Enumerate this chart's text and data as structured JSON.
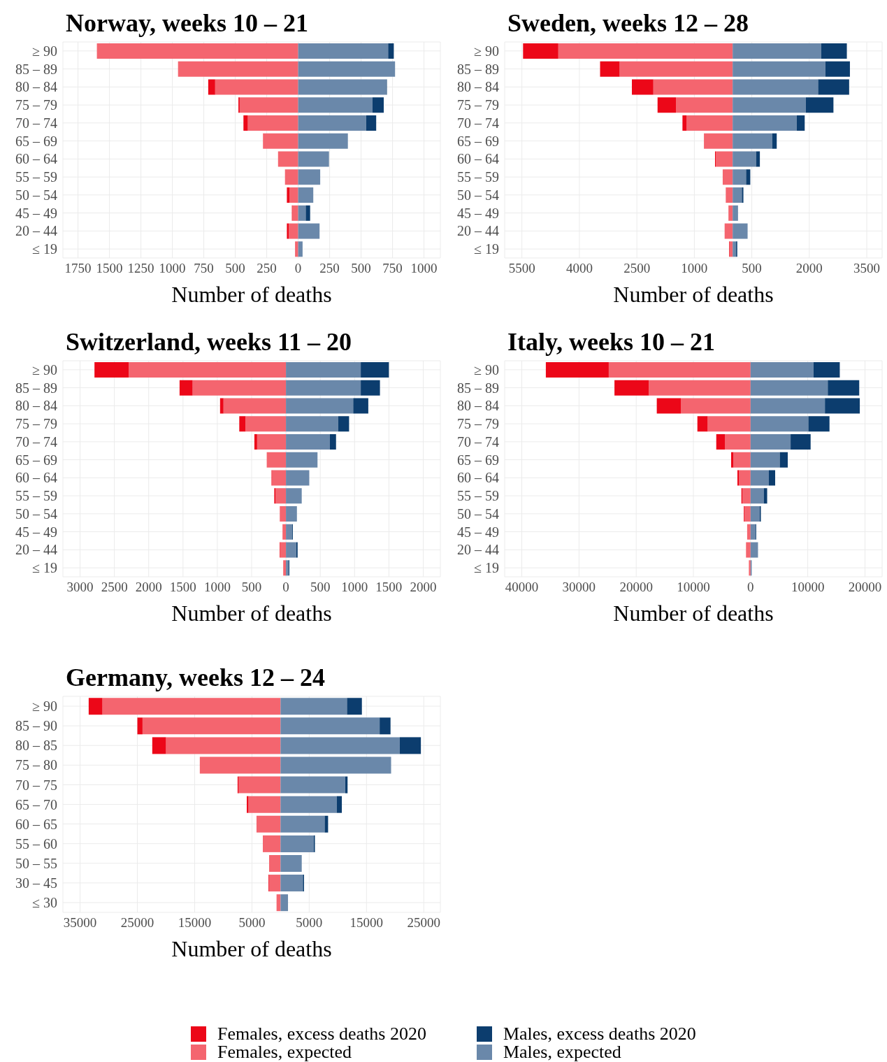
{
  "chart_data": [
    {
      "type": "bar",
      "orientation": "horizontal",
      "stacked": true,
      "title": "Norway, weeks 10 – 21",
      "xlabel": "Number of deaths",
      "legend": "bottom",
      "grid": true,
      "categories": [
        "≥ 90",
        "85 – 89",
        "80 – 84",
        "75 – 79",
        "70 – 74",
        "65 – 69",
        "60 – 64",
        "55 – 59",
        "50 – 54",
        "45 – 49",
        "20 – 44",
        "≤ 19"
      ],
      "xlim": [
        -1870,
        1130
      ],
      "xticks": [
        {
          "value": -1750,
          "label": "1750"
        },
        {
          "value": -1500,
          "label": "1500"
        },
        {
          "value": -1250,
          "label": "1250"
        },
        {
          "value": -1000,
          "label": "1000"
        },
        {
          "value": -750,
          "label": "750"
        },
        {
          "value": -500,
          "label": "500"
        },
        {
          "value": -250,
          "label": "250"
        },
        0,
        250,
        500,
        750,
        1000
      ],
      "series": [
        {
          "name": "Females, expected",
          "color": "#f4656f",
          "values": [
            -1600,
            -955,
            -660,
            -465,
            -400,
            -280,
            -160,
            -105,
            -70,
            -45,
            -75,
            -25
          ]
        },
        {
          "name": "Females, excess deaths 2020",
          "color": "#ec0718",
          "values": [
            0,
            0,
            -55,
            -10,
            -35,
            0,
            0,
            0,
            -20,
            -5,
            -15,
            0
          ]
        },
        {
          "name": "Males, expected",
          "color": "#6a88aa",
          "values": [
            715,
            770,
            700,
            590,
            540,
            395,
            245,
            175,
            120,
            60,
            170,
            35
          ]
        },
        {
          "name": "Males, excess deaths 2020",
          "color": "#0c3d6e",
          "values": [
            45,
            0,
            5,
            90,
            80,
            0,
            0,
            0,
            0,
            35,
            0,
            0
          ]
        }
      ]
    },
    {
      "type": "bar",
      "orientation": "horizontal",
      "stacked": true,
      "title": "Sweden, weeks 12 – 28",
      "xlabel": "Number of deaths",
      "grid": true,
      "categories": [
        "≥ 90",
        "85 – 89",
        "80 – 84",
        "75 – 79",
        "70 – 74",
        "65 – 69",
        "60 – 64",
        "55 – 59",
        "50 – 54",
        "45 – 49",
        "20 – 44",
        "≤ 19"
      ],
      "xlim": [
        -5950,
        3900
      ],
      "xticks": [
        {
          "value": -5500,
          "label": "5500"
        },
        {
          "value": -4000,
          "label": "4000"
        },
        {
          "value": -2500,
          "label": "2500"
        },
        {
          "value": -1000,
          "label": "1000"
        },
        500,
        2000,
        3500
      ],
      "series": [
        {
          "color": "#f4656f",
          "values": [
            -4550,
            -2950,
            -2070,
            -1480,
            -1200,
            -750,
            -440,
            -260,
            -180,
            -110,
            -210,
            -70
          ]
        },
        {
          "color": "#ec0718",
          "values": [
            -920,
            -510,
            -560,
            -480,
            -110,
            0,
            -20,
            0,
            0,
            0,
            0,
            -20
          ]
        },
        {
          "color": "#6a88aa",
          "values": [
            2310,
            2420,
            2230,
            1910,
            1670,
            1030,
            610,
            350,
            240,
            140,
            390,
            90
          ]
        },
        {
          "color": "#0c3d6e",
          "values": [
            670,
            640,
            810,
            720,
            210,
            120,
            100,
            110,
            40,
            0,
            0,
            30
          ]
        }
      ]
    },
    {
      "type": "bar",
      "orientation": "horizontal",
      "stacked": true,
      "title": "Switzerland, weeks 11 – 20",
      "xlabel": "Number of deaths",
      "grid": true,
      "categories": [
        "≥ 90",
        "85 – 89",
        "80 – 84",
        "75 – 79",
        "70 – 74",
        "65 – 69",
        "60 – 64",
        "55 – 59",
        "50 – 54",
        "45 – 49",
        "20 – 44",
        "≤ 19"
      ],
      "xlim": [
        -3250,
        2250
      ],
      "xticks": [
        {
          "value": -3000,
          "label": "3000"
        },
        {
          "value": -2500,
          "label": "2500"
        },
        {
          "value": -2000,
          "label": "2000"
        },
        {
          "value": -1500,
          "label": "1500"
        },
        {
          "value": -1000,
          "label": "1000"
        },
        {
          "value": -500,
          "label": "500"
        },
        0,
        500,
        1000,
        1500,
        2000
      ],
      "series": [
        {
          "color": "#f4656f",
          "values": [
            -2290,
            -1360,
            -910,
            -590,
            -420,
            -280,
            -200,
            -150,
            -90,
            -50,
            -80,
            -40
          ]
        },
        {
          "color": "#ec0718",
          "values": [
            -500,
            -190,
            -50,
            -90,
            -40,
            0,
            -10,
            -20,
            0,
            0,
            -10,
            0
          ]
        },
        {
          "color": "#6a88aa",
          "values": [
            1090,
            1090,
            980,
            760,
            640,
            460,
            340,
            230,
            160,
            90,
            150,
            40
          ]
        },
        {
          "color": "#0c3d6e",
          "values": [
            410,
            280,
            220,
            160,
            90,
            0,
            0,
            0,
            0,
            10,
            20,
            10
          ]
        }
      ]
    },
    {
      "type": "bar",
      "orientation": "horizontal",
      "stacked": true,
      "title": "Italy, weeks 10 – 21",
      "xlabel": "Number of deaths",
      "grid": true,
      "categories": [
        "≥ 90",
        "85 – 89",
        "80 – 84",
        "75 – 79",
        "70 – 74",
        "65 – 69",
        "60 – 64",
        "55 – 59",
        "50 – 54",
        "45 – 49",
        "20 – 44",
        "≤ 19"
      ],
      "xlim": [
        -43000,
        23000
      ],
      "xticks": [
        {
          "value": -40000,
          "label": "40000"
        },
        {
          "value": -30000,
          "label": "30000"
        },
        {
          "value": -20000,
          "label": "20000"
        },
        {
          "value": -10000,
          "label": "10000"
        },
        0,
        10000,
        20000
      ],
      "series": [
        {
          "color": "#f4656f",
          "values": [
            -24800,
            -17800,
            -12200,
            -7500,
            -4500,
            -3000,
            -2000,
            -1400,
            -1100,
            -600,
            -800,
            -300
          ]
        },
        {
          "color": "#ec0718",
          "values": [
            -11000,
            -6000,
            -4200,
            -1800,
            -1500,
            -400,
            -300,
            -200,
            -100,
            0,
            0,
            0
          ]
        },
        {
          "color": "#6a88aa",
          "values": [
            11000,
            13500,
            13000,
            10100,
            7000,
            5100,
            3200,
            2300,
            1600,
            900,
            1300,
            200
          ]
        },
        {
          "color": "#0c3d6e",
          "values": [
            4600,
            5500,
            6100,
            3700,
            3500,
            1400,
            1100,
            600,
            200,
            100,
            0,
            0
          ]
        }
      ]
    },
    {
      "type": "bar",
      "orientation": "horizontal",
      "stacked": true,
      "title": "Germany, weeks 12 – 24",
      "xlabel": "Number of deaths",
      "grid": true,
      "categories": [
        "≥ 90",
        "85 – 90",
        "80 – 85",
        "75 – 80",
        "70 – 75",
        "65 – 70",
        "60 – 65",
        "55 – 60",
        "50 – 55",
        "30 – 45",
        "≤ 30"
      ],
      "xlim": [
        -38000,
        27900
      ],
      "xticks": [
        {
          "value": -35000,
          "label": "35000"
        },
        {
          "value": -25000,
          "label": "25000"
        },
        {
          "value": -15000,
          "label": "15000"
        },
        {
          "value": -5000,
          "label": "5000"
        },
        5000,
        15000,
        25000
      ],
      "series": [
        {
          "color": "#f4656f",
          "values": [
            -31100,
            -24100,
            -20000,
            -14100,
            -7300,
            -5600,
            -4200,
            -3100,
            -2000,
            -2000,
            -700
          ]
        },
        {
          "color": "#ec0718",
          "values": [
            -2400,
            -900,
            -2400,
            0,
            -200,
            -300,
            0,
            0,
            0,
            -100,
            0
          ]
        },
        {
          "color": "#6a88aa",
          "values": [
            11600,
            17300,
            20800,
            19300,
            11300,
            9800,
            7700,
            5800,
            3700,
            3900,
            1300
          ]
        },
        {
          "color": "#0c3d6e",
          "values": [
            2600,
            1900,
            3700,
            0,
            400,
            900,
            600,
            200,
            0,
            200,
            0
          ]
        }
      ]
    }
  ]
}
